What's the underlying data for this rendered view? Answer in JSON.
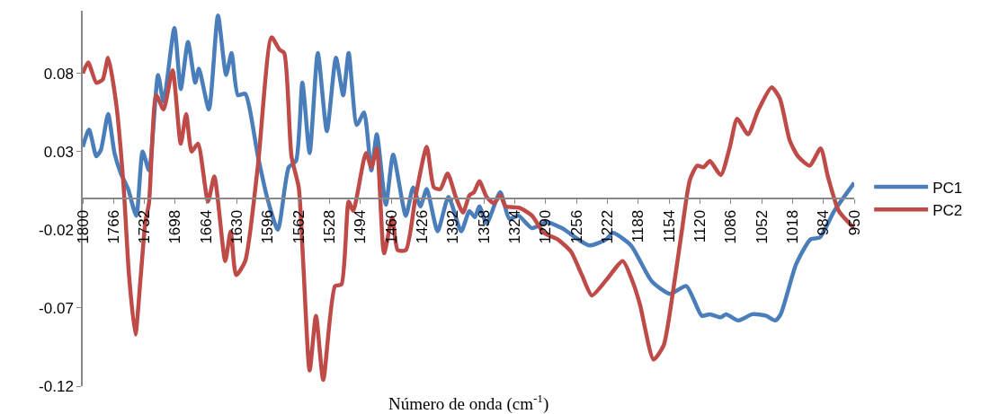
{
  "chart_data": {
    "type": "line",
    "xlabel": "Número de onda (cm$^{-1}$)",
    "xlim": [
      1800,
      950
    ],
    "xticks": [
      1800,
      1766,
      1732,
      1698,
      1664,
      1630,
      1596,
      1562,
      1528,
      1494,
      1460,
      1426,
      1392,
      1358,
      1324,
      1290,
      1256,
      1222,
      1188,
      1154,
      1120,
      1086,
      1052,
      1018,
      984,
      950
    ],
    "ylim": [
      -0.12,
      0.12
    ],
    "yticks": [
      -0.12,
      -0.07,
      -0.02,
      0.03,
      0.08
    ],
    "grid": false,
    "legend": "right",
    "marker": "none",
    "line_style": "solid",
    "series": [
      {
        "name": "PC1",
        "color": "#4a7ebb",
        "x": [
          1800,
          1793,
          1785,
          1780,
          1772,
          1765,
          1758,
          1750,
          1741,
          1734,
          1727,
          1717,
          1711,
          1699,
          1692,
          1684,
          1676,
          1672,
          1661,
          1651,
          1642,
          1636,
          1629,
          1621,
          1607,
          1597,
          1585,
          1573,
          1565,
          1558,
          1550,
          1541,
          1531,
          1521,
          1513,
          1507,
          1498,
          1490,
          1482,
          1476,
          1466,
          1458,
          1444,
          1436,
          1428,
          1421,
          1409,
          1397,
          1383,
          1374,
          1368,
          1363,
          1355,
          1340,
          1330,
          1320,
          1305,
          1289,
          1272,
          1242,
          1223,
          1216,
          1196,
          1173,
          1153,
          1135,
          1118,
          1109,
          1097,
          1091,
          1078,
          1062,
          1047,
          1037,
          1031,
          1014,
          998,
          988,
          972,
          950
        ],
        "values": [
          0.033,
          0.044,
          0.027,
          0.031,
          0.054,
          0.029,
          0.016,
          0.006,
          -0.011,
          0.03,
          0.018,
          0.079,
          0.062,
          0.109,
          0.07,
          0.1,
          0.074,
          0.083,
          0.057,
          0.117,
          0.079,
          0.093,
          0.066,
          0.067,
          0.027,
          0.001,
          -0.02,
          0.02,
          0.024,
          0.074,
          0.029,
          0.093,
          0.043,
          0.09,
          0.066,
          0.093,
          0.047,
          0.055,
          0.018,
          0.041,
          -0.004,
          0.028,
          -0.011,
          0.007,
          -0.005,
          0.006,
          -0.021,
          0.001,
          -0.021,
          -0.008,
          -0.012,
          -0.005,
          -0.016,
          0.004,
          -0.013,
          -0.011,
          -0.019,
          -0.015,
          -0.019,
          -0.03,
          -0.026,
          -0.022,
          -0.03,
          -0.053,
          -0.061,
          -0.056,
          -0.075,
          -0.074,
          -0.076,
          -0.074,
          -0.078,
          -0.074,
          -0.075,
          -0.078,
          -0.074,
          -0.042,
          -0.026,
          -0.025,
          -0.008,
          0.01
        ]
      },
      {
        "name": "PC2",
        "color": "#be4b48",
        "x": [
          1800,
          1794,
          1785,
          1778,
          1772,
          1763,
          1755,
          1749,
          1742,
          1736,
          1731,
          1727,
          1719,
          1711,
          1701,
          1692,
          1686,
          1680,
          1673,
          1662,
          1655,
          1643,
          1637,
          1631,
          1621,
          1607,
          1592,
          1583,
          1578,
          1570,
          1562,
          1557,
          1550,
          1543,
          1535,
          1522,
          1515,
          1507,
          1502,
          1488,
          1482,
          1476,
          1468,
          1459,
          1453,
          1444,
          1433,
          1421,
          1413,
          1406,
          1398,
          1389,
          1381,
          1374,
          1369,
          1363,
          1355,
          1347,
          1340,
          1334,
          1319,
          1305,
          1292,
          1277,
          1262,
          1250,
          1239,
          1223,
          1205,
          1193,
          1186,
          1171,
          1160,
          1150,
          1140,
          1131,
          1123,
          1116,
          1109,
          1097,
          1087,
          1079,
          1067,
          1056,
          1041,
          1032,
          1021,
          1012,
          999,
          987,
          979,
          967,
          950
        ],
        "values": [
          0.08,
          0.087,
          0.074,
          0.076,
          0.09,
          0.06,
          0.008,
          -0.049,
          -0.087,
          -0.049,
          -0.015,
          -0.003,
          0.066,
          0.057,
          0.082,
          0.035,
          0.054,
          0.03,
          0.035,
          -0.002,
          0.014,
          -0.04,
          -0.021,
          -0.049,
          -0.04,
          0.021,
          0.103,
          0.095,
          0.093,
          0.027,
          0.007,
          -0.042,
          -0.11,
          -0.075,
          -0.116,
          -0.056,
          -0.055,
          -0.002,
          -0.008,
          0.029,
          0.02,
          0.032,
          -0.035,
          -0.012,
          -0.033,
          -0.033,
          0.002,
          0.033,
          0.007,
          0.006,
          0.016,
          0.001,
          -0.009,
          0.002,
          0.004,
          0.011,
          0.001,
          -0.003,
          0.002,
          -0.005,
          -0.006,
          -0.011,
          -0.022,
          -0.026,
          -0.034,
          -0.049,
          -0.062,
          -0.052,
          -0.04,
          -0.055,
          -0.068,
          -0.103,
          -0.094,
          -0.061,
          -0.021,
          0.012,
          0.021,
          0.02,
          0.024,
          0.015,
          0.033,
          0.051,
          0.041,
          0.056,
          0.071,
          0.064,
          0.037,
          0.027,
          0.021,
          0.032,
          0.014,
          -0.008,
          -0.019
        ]
      }
    ]
  }
}
